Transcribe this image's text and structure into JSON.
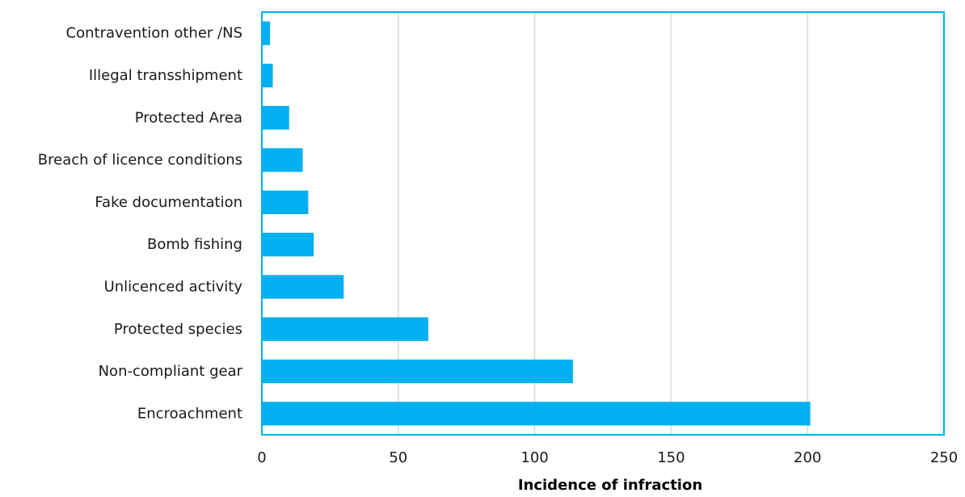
{
  "chart_data": {
    "type": "bar",
    "orientation": "horizontal",
    "title": "",
    "xlabel": "Incidence of infraction",
    "ylabel": "",
    "categories": [
      "Encroachment",
      "Non-compliant gear",
      "Protected species",
      "Unlicenced activity",
      "Bomb fishing",
      "Fake documentation",
      "Breach of licence conditions",
      "Protected Area",
      "Illegal transshipment",
      "Contravention other /NS"
    ],
    "values": [
      201,
      114,
      61,
      30,
      19,
      17,
      15,
      10,
      4,
      3
    ],
    "xlim": [
      0,
      250
    ],
    "xticks": [
      "0",
      "50",
      "100",
      "150",
      "200",
      "250"
    ],
    "grid": "vertical",
    "legend": "none",
    "colors": {
      "bar": "#00b0f0",
      "border": "#00b0f0",
      "grid": "#d9d9d9"
    }
  }
}
